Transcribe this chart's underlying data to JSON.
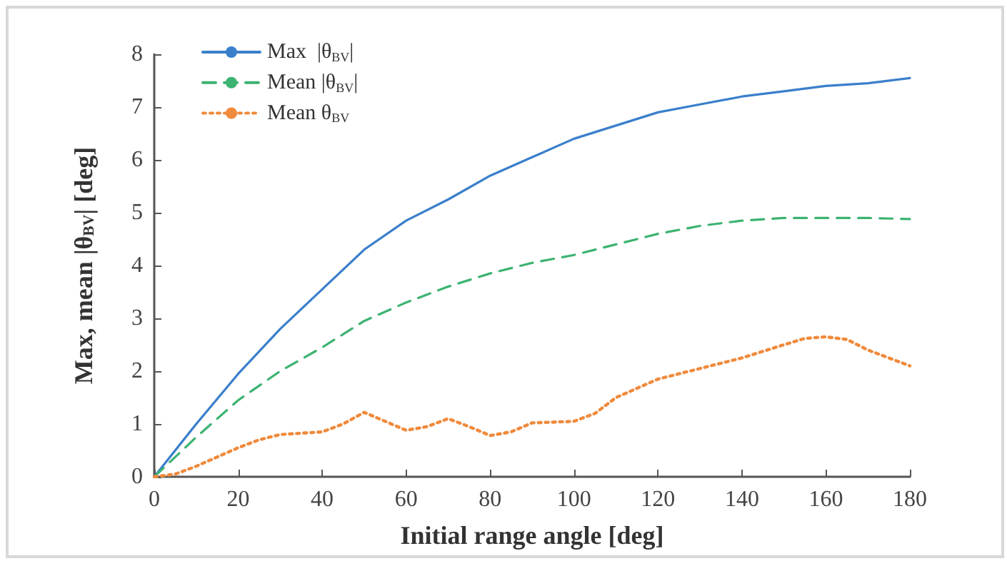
{
  "chart_data": {
    "type": "line",
    "xlabel": "Initial range angle [deg]",
    "ylabel": "Max, mean |θ$_{BV}$| [deg]",
    "xlim": [
      0,
      180
    ],
    "xticks": [
      0,
      20,
      40,
      60,
      80,
      100,
      120,
      140,
      160,
      180
    ],
    "ylim": [
      0,
      8
    ],
    "yticks": [
      0,
      1,
      2,
      3,
      4,
      5,
      6,
      7,
      8
    ],
    "grid": false,
    "legend": "top left",
    "marker": "none",
    "series": [
      {
        "name": "Max  |θ$_{BV}$|",
        "color": "#3a7fcb",
        "line_style": "solid",
        "x": [
          0,
          10,
          20,
          30,
          40,
          50,
          60,
          70,
          80,
          90,
          100,
          110,
          120,
          130,
          140,
          150,
          160,
          170,
          180
        ],
        "values": [
          0,
          1.0,
          1.95,
          2.8,
          3.55,
          4.3,
          4.85,
          5.25,
          5.7,
          6.05,
          6.4,
          6.65,
          6.9,
          7.05,
          7.2,
          7.3,
          7.4,
          7.45,
          7.55
        ]
      },
      {
        "name": "Mean |θ$_{BV}$|",
        "color": "#3cb371",
        "line_style": "dashed",
        "x": [
          0,
          10,
          20,
          30,
          40,
          50,
          60,
          70,
          80,
          90,
          100,
          110,
          120,
          130,
          140,
          150,
          160,
          170,
          180
        ],
        "values": [
          0,
          0.75,
          1.45,
          2.0,
          2.45,
          2.95,
          3.3,
          3.6,
          3.85,
          4.05,
          4.2,
          4.4,
          4.6,
          4.75,
          4.85,
          4.9,
          4.9,
          4.9,
          4.88
        ]
      },
      {
        "name": "Mean θ$_{BV}$",
        "color": "#f08a3c",
        "line_style": "dotted",
        "x": [
          0,
          5,
          10,
          20,
          25,
          30,
          40,
          45,
          50,
          55,
          60,
          65,
          70,
          75,
          80,
          85,
          90,
          100,
          105,
          110,
          120,
          130,
          140,
          150,
          155,
          160,
          165,
          170,
          180
        ],
        "values": [
          0,
          0.05,
          0.2,
          0.55,
          0.7,
          0.8,
          0.85,
          1.0,
          1.22,
          1.05,
          0.88,
          0.95,
          1.1,
          0.95,
          0.78,
          0.85,
          1.02,
          1.05,
          1.2,
          1.5,
          1.85,
          2.05,
          2.25,
          2.5,
          2.62,
          2.65,
          2.6,
          2.4,
          2.1
        ]
      }
    ]
  }
}
